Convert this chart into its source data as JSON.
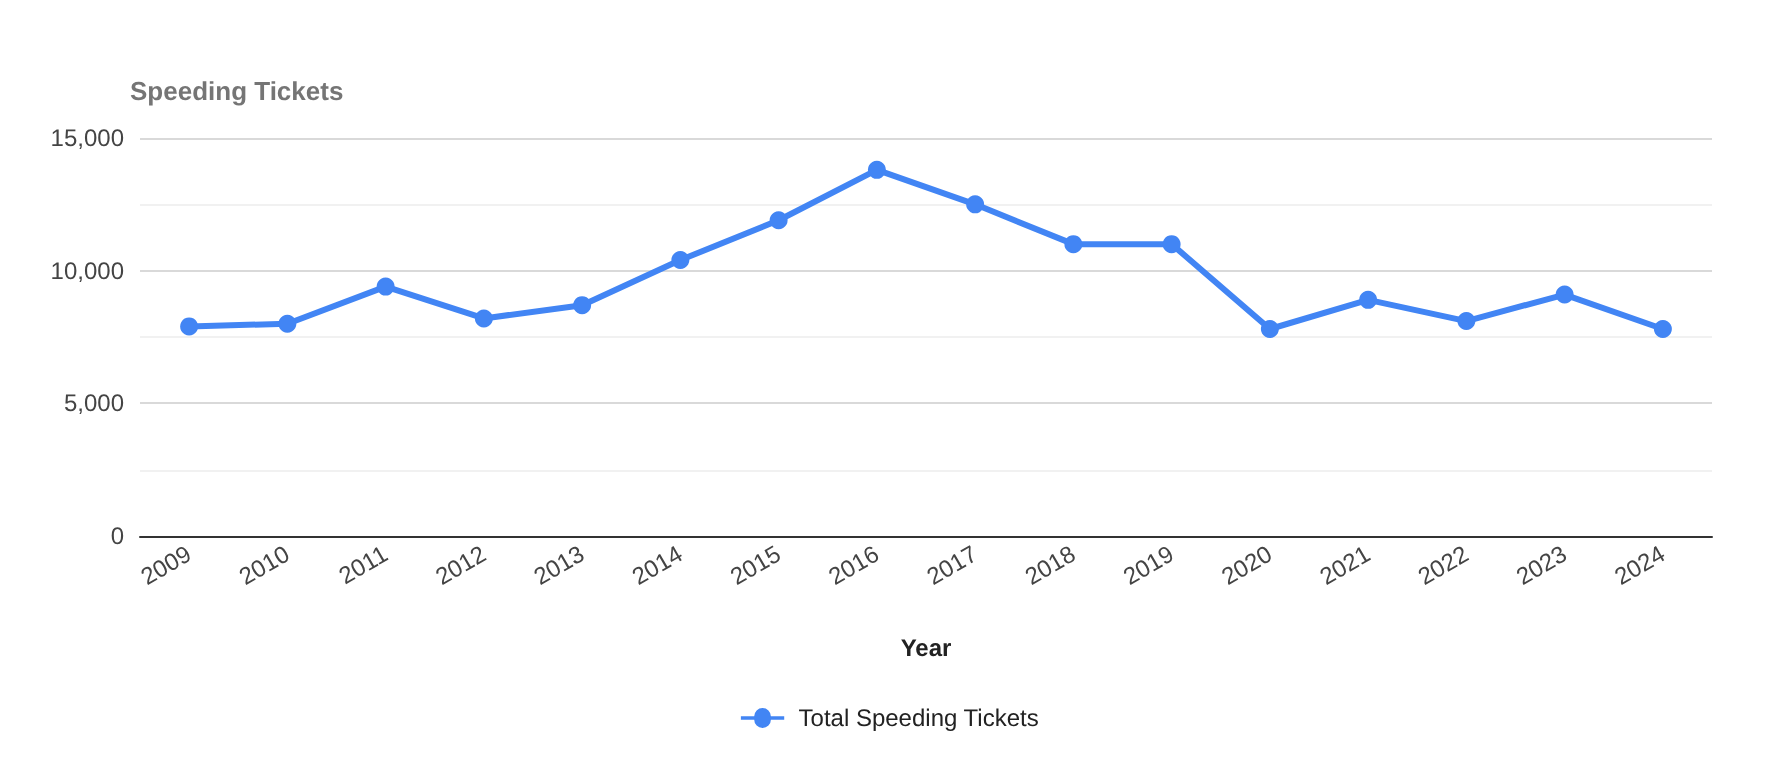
{
  "chart_data": {
    "type": "line",
    "title": "Speeding Tickets",
    "xlabel": "Year",
    "categories": [
      "2009",
      "2010",
      "2011",
      "2012",
      "2013",
      "2014",
      "2015",
      "2016",
      "2017",
      "2018",
      "2019",
      "2020",
      "2021",
      "2022",
      "2023",
      "2024"
    ],
    "series": [
      {
        "name": "Total Speeding Tickets",
        "color": "#4285f4",
        "values": [
          7900,
          8000,
          9400,
          8200,
          8700,
          10400,
          11900,
          13800,
          12500,
          11000,
          11000,
          7800,
          8900,
          8100,
          9100,
          7800
        ]
      }
    ],
    "ylim": [
      0,
      15000
    ],
    "yticks": [
      0,
      {
        "value": 2500,
        "label": null
      },
      {
        "value": 5000,
        "label": "5,000"
      },
      {
        "value": 7500,
        "label": null
      },
      {
        "value": 10000,
        "label": "10,000"
      },
      {
        "value": 12500,
        "label": null
      },
      {
        "value": 15000,
        "label": "15,000"
      }
    ],
    "grid": true,
    "legend": "bottom",
    "marker": "circle",
    "line_style": "solid"
  }
}
